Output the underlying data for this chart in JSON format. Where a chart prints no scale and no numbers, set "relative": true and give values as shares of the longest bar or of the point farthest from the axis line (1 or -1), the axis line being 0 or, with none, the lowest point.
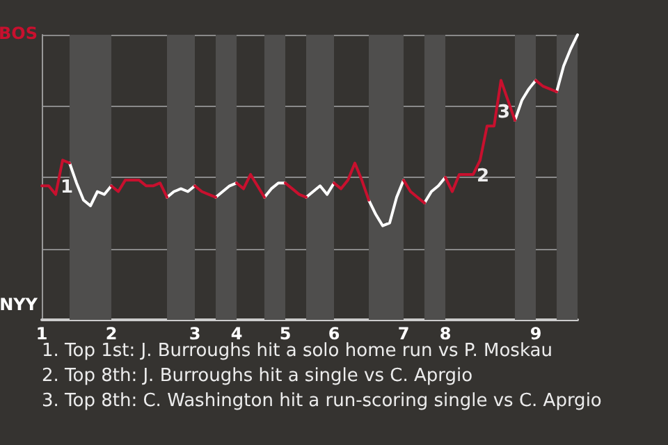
{
  "chart_data": {
    "type": "line",
    "categories": [
      "1",
      null,
      null,
      null,
      null,
      null,
      null,
      null,
      null,
      null,
      "2",
      null,
      null,
      null,
      null,
      null,
      null,
      null,
      null,
      null,
      null,
      null,
      "3",
      null,
      null,
      null,
      null,
      null,
      "4",
      null,
      null,
      null,
      null,
      null,
      null,
      "5",
      null,
      null,
      null,
      null,
      null,
      null,
      "6",
      null,
      null,
      null,
      null,
      null,
      null,
      null,
      null,
      null,
      "7",
      null,
      null,
      null,
      null,
      null,
      "8",
      null,
      null,
      null,
      null,
      null,
      null,
      null,
      null,
      null,
      null,
      null,
      null,
      "9",
      null,
      null,
      null,
      null,
      null,
      null
    ],
    "relative": true,
    "series": [
      {
        "color": "#ffffff",
        "values": [
          null,
          null,
          null,
          null,
          0.55,
          0.48,
          0.42,
          0.4,
          0.45,
          0.44,
          0.47,
          null,
          null,
          null,
          null,
          null,
          null,
          null,
          0.43,
          0.45,
          0.46,
          0.45,
          0.47,
          null,
          null,
          0.43,
          0.45,
          0.47,
          0.48,
          null,
          null,
          null,
          0.43,
          0.46,
          0.48,
          0.48,
          null,
          null,
          0.43,
          0.45,
          0.47,
          0.44,
          0.48,
          null,
          null,
          null,
          null,
          0.42,
          0.37,
          0.33,
          0.34,
          0.43,
          0.49,
          null,
          null,
          0.41,
          0.45,
          0.47,
          0.5,
          null,
          null,
          null,
          null,
          null,
          null,
          null,
          null,
          null,
          0.7,
          0.77,
          0.81,
          0.84,
          null,
          null,
          0.8,
          0.89,
          0.95,
          1
        ]
      },
      {
        "color": "#c8102e",
        "values": [
          0.47,
          0.47,
          0.44,
          0.56,
          0.55,
          null,
          null,
          null,
          null,
          null,
          0.47,
          0.45,
          0.49,
          0.49,
          0.49,
          0.47,
          0.47,
          0.48,
          0.43,
          null,
          null,
          null,
          0.47,
          0.45,
          0.44,
          0.43,
          null,
          null,
          0.48,
          0.46,
          0.51,
          0.47,
          0.43,
          null,
          null,
          0.48,
          0.46,
          0.44,
          0.43,
          null,
          null,
          null,
          0.48,
          0.46,
          0.49,
          0.55,
          0.49,
          0.42,
          null,
          null,
          null,
          null,
          0.49,
          0.45,
          0.43,
          0.41,
          null,
          null,
          0.5,
          0.45,
          0.51,
          0.51,
          0.51,
          0.56,
          0.68,
          0.68,
          0.84,
          0.77,
          0.7,
          null,
          null,
          0.84,
          0.82,
          0.81,
          0.8,
          null,
          null,
          null
        ]
      }
    ],
    "grid": "y",
    "annotations": [
      "BOS",
      "NYY",
      "1",
      "2",
      "3",
      "1. Top 1st: J. Burroughs hit a solo home run vs P. Moskau",
      "2. Top 8th: J. Burroughs hit a single vs C. Aprgio",
      "3. Top 8th: C. Washington hit a run-scoring single vs C. Aprgio"
    ]
  }
}
